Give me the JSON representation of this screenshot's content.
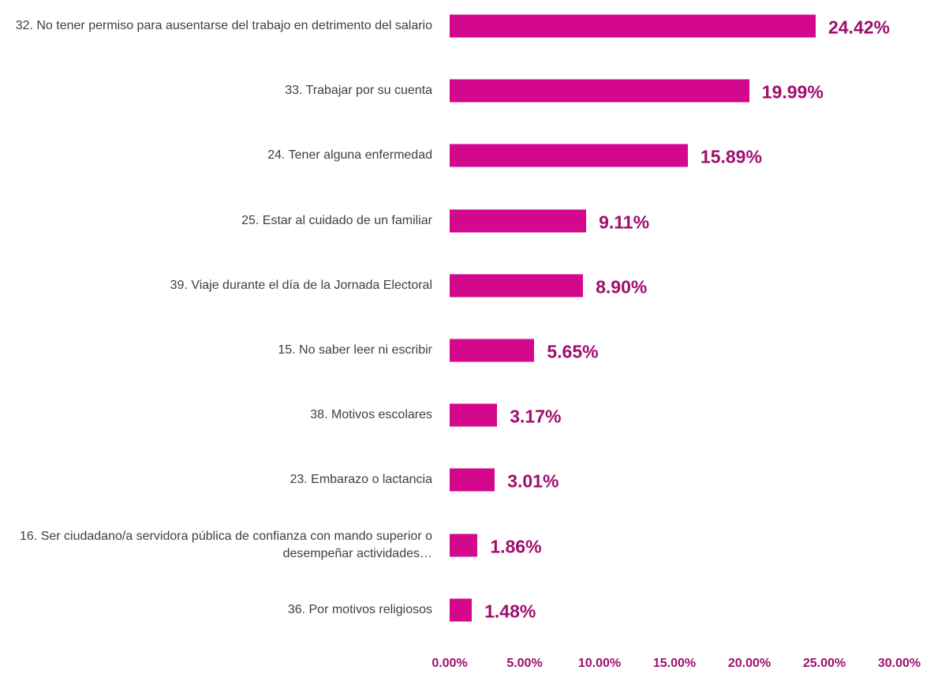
{
  "chart_data": {
    "type": "bar",
    "orientation": "horizontal",
    "categories": [
      "32. No tener permiso para ausentarse del trabajo en detrimento del salario",
      "33. Trabajar por su cuenta",
      "24. Tener alguna enfermedad",
      "25. Estar al cuidado de un familiar",
      "39. Viaje durante el día de la Jornada Electoral",
      "15. No saber leer ni escribir",
      "38. Motivos escolares",
      "23. Embarazo o lactancia",
      "16. Ser ciudadano/a servidora pública de confianza con mando superior o desempeñar actividades…",
      "36. Por motivos religiosos"
    ],
    "values": [
      24.42,
      19.99,
      15.89,
      9.11,
      8.9,
      5.65,
      3.17,
      3.01,
      1.86,
      1.48
    ],
    "value_labels": [
      "24.42%",
      "19.99%",
      "15.89%",
      "9.11%",
      "8.90%",
      "5.65%",
      "3.17%",
      "3.01%",
      "1.86%",
      "1.48%"
    ],
    "color": "#d4088c",
    "xlim": [
      0,
      30
    ],
    "xticks": [
      {
        "value": 0,
        "label": "0.00%"
      },
      {
        "value": 5,
        "label": "5.00%"
      },
      {
        "value": 10,
        "label": "10.00%"
      },
      {
        "value": 15,
        "label": "15.00%"
      },
      {
        "value": 20,
        "label": "20.00%"
      },
      {
        "value": 25,
        "label": "25.00%"
      },
      {
        "value": 30,
        "label": "30.00%"
      }
    ],
    "grid": false
  }
}
